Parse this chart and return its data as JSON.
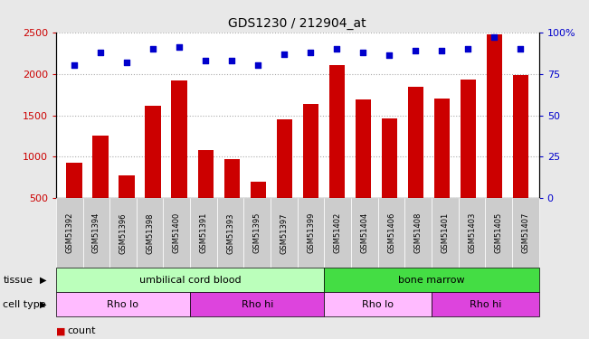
{
  "title": "GDS1230 / 212904_at",
  "samples": [
    "GSM51392",
    "GSM51394",
    "GSM51396",
    "GSM51398",
    "GSM51400",
    "GSM51391",
    "GSM51393",
    "GSM51395",
    "GSM51397",
    "GSM51399",
    "GSM51402",
    "GSM51404",
    "GSM51406",
    "GSM51408",
    "GSM51401",
    "GSM51403",
    "GSM51405",
    "GSM51407"
  ],
  "counts": [
    930,
    1260,
    780,
    1610,
    1920,
    1080,
    970,
    700,
    1450,
    1640,
    2100,
    1690,
    1460,
    1840,
    1700,
    1930,
    2470,
    1980
  ],
  "percentile_ranks": [
    80,
    88,
    82,
    90,
    91,
    83,
    83,
    80,
    87,
    88,
    90,
    88,
    86,
    89,
    89,
    90,
    97,
    90
  ],
  "bar_color": "#cc0000",
  "dot_color": "#0000cc",
  "ylim_left": [
    500,
    2500
  ],
  "ylim_right": [
    0,
    100
  ],
  "yticks_left": [
    500,
    1000,
    1500,
    2000,
    2500
  ],
  "yticks_right": [
    0,
    25,
    50,
    75,
    100
  ],
  "yticklabels_right": [
    "0",
    "25",
    "50",
    "75",
    "100%"
  ],
  "tissue_labels": [
    {
      "text": "umbilical cord blood",
      "start": 0,
      "end": 9,
      "color": "#bbffbb"
    },
    {
      "text": "bone marrow",
      "start": 10,
      "end": 17,
      "color": "#44dd44"
    }
  ],
  "celltype_labels": [
    {
      "text": "Rho lo",
      "start": 0,
      "end": 4,
      "color": "#ffbbff"
    },
    {
      "text": "Rho hi",
      "start": 5,
      "end": 9,
      "color": "#dd44dd"
    },
    {
      "text": "Rho lo",
      "start": 10,
      "end": 13,
      "color": "#ffbbff"
    },
    {
      "text": "Rho hi",
      "start": 14,
      "end": 17,
      "color": "#dd44dd"
    }
  ],
  "grid_color": "#aaaaaa",
  "bg_color": "#e8e8e8",
  "plot_bg": "#ffffff",
  "xticklabel_bg": "#cccccc",
  "bar_width": 0.6
}
